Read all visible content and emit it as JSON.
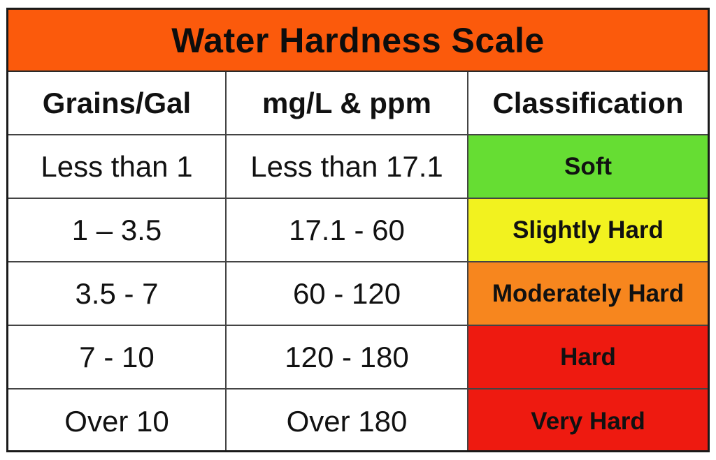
{
  "chart_data": {
    "type": "table",
    "title": "Water Hardness Scale",
    "columns": [
      "Grains/Gal",
      "mg/L & ppm",
      "Classification"
    ],
    "rows": [
      {
        "grains_gal": "Less than 1",
        "mg_l_ppm": "Less than 17.1",
        "classification": "Soft",
        "color": "#66dd33"
      },
      {
        "grains_gal": "1 – 3.5",
        "mg_l_ppm": "17.1 - 60",
        "classification": "Slightly Hard",
        "color": "#f2f21f"
      },
      {
        "grains_gal": "3.5 - 7",
        "mg_l_ppm": "60 - 120",
        "classification": "Moderately Hard",
        "color": "#f7861e"
      },
      {
        "grains_gal": "7 - 10",
        "mg_l_ppm": "120 - 180",
        "classification": "Hard",
        "color": "#ee1a10"
      },
      {
        "grains_gal": "Over 10",
        "mg_l_ppm": "Over 180",
        "classification": "Very Hard",
        "color": "#ee1a10"
      }
    ],
    "title_color": "#fb5a0c"
  }
}
